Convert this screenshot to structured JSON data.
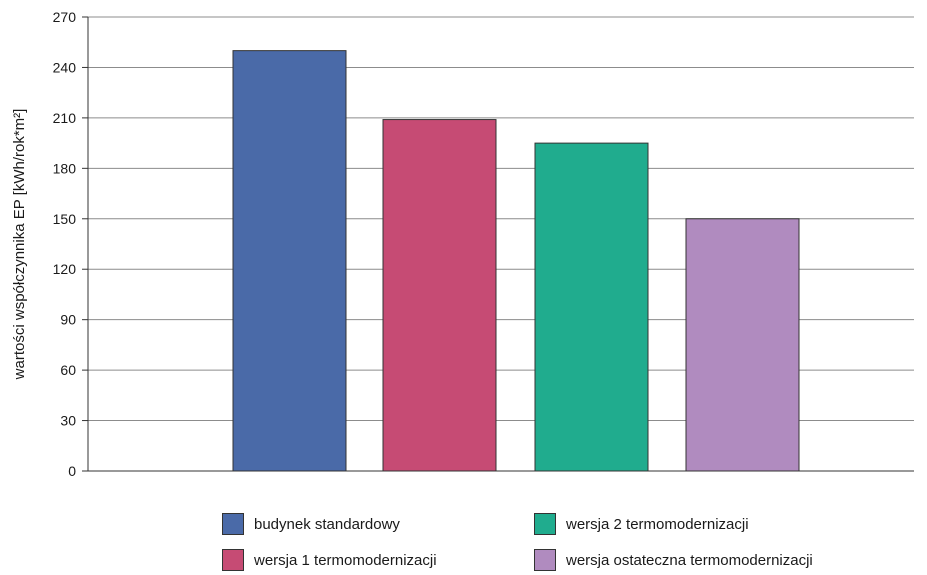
{
  "chart_data": {
    "type": "bar",
    "title": "",
    "xlabel": "",
    "ylabel": "wartości współczynnika EP [kWh/rok*m²]",
    "ylim": [
      0,
      270
    ],
    "yticks": [
      0,
      30,
      60,
      90,
      120,
      150,
      180,
      210,
      240,
      270
    ],
    "grid": true,
    "legend_position": "bottom",
    "series": [
      {
        "name": "budynek standardowy",
        "values": [
          250
        ],
        "color": "#4a6aa8"
      },
      {
        "name": "wersja 1 termomodernizacji",
        "values": [
          209
        ],
        "color": "#c64b74"
      },
      {
        "name": "wersja 2 termomodernizacji",
        "values": [
          195
        ],
        "color": "#20ac8e"
      },
      {
        "name": "wersja ostateczna termomodernizacji",
        "values": [
          150
        ],
        "color": "#b08bbf"
      }
    ]
  }
}
